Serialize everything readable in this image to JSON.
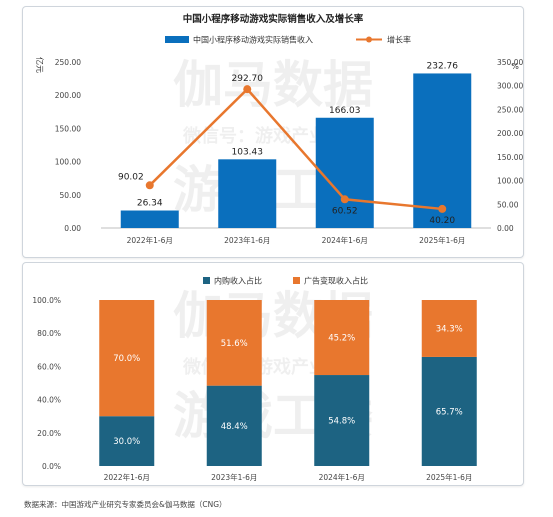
{
  "charts": {
    "revenue": {
      "title": "中国小程序移动游戏实际销售收入及增长率",
      "legend_bar": "中国小程序移动游戏实际销售收入",
      "legend_line": "增长率",
      "y_left_unit": "亿元",
      "y_right_unit": "%"
    },
    "share": {
      "legend_a": "内购收入占比",
      "legend_b": "广告变现收入占比"
    }
  },
  "watermark": {
    "line1": "伽马数据",
    "line2": "微信号：游戏产业报告",
    "line3": "游戏工委"
  },
  "source": "数据来源：中国游戏产业研究专家委员会&伽马数据（CNG）",
  "colors": {
    "bar_blue": "#0a6fbd",
    "line_orange": "#e8772e",
    "teal": "#1d6382",
    "orange": "#e8772e"
  },
  "chart_data": [
    {
      "type": "bar",
      "categories": [
        "2022年1-6月",
        "2023年1-6月",
        "2024年1-6月",
        "2025年1-6月"
      ],
      "series": [
        {
          "name": "中国小程序移动游戏实际销售收入",
          "values": [
            26.34,
            103.43,
            166.03,
            232.76
          ],
          "axis": "left"
        },
        {
          "name": "增长率",
          "type": "line",
          "values": [
            90.02,
            292.7,
            60.52,
            40.2
          ],
          "axis": "right"
        }
      ],
      "title": "中国小程序移动游戏实际销售收入及增长率",
      "ylabel": "亿元",
      "y2label": "%",
      "ylim": [
        0,
        250
      ],
      "y2lim": [
        0,
        350
      ],
      "yticks": [
        "0.00",
        "50.00",
        "100.00",
        "150.00",
        "200.00",
        "250.00"
      ],
      "y2ticks": [
        "0.00",
        "50.00",
        "100.00",
        "150.00",
        "200.00",
        "250.00",
        "300.00",
        "350.00"
      ],
      "legend": "top-center",
      "grid": false
    },
    {
      "type": "bar",
      "stacked": true,
      "categories": [
        "2022年1-6月",
        "2023年1-6月",
        "2024年1-6月",
        "2025年1-6月"
      ],
      "series": [
        {
          "name": "内购收入占比",
          "values": [
            30.0,
            48.4,
            54.8,
            65.7
          ],
          "labels": [
            "30.0%",
            "48.4%",
            "54.8%",
            "65.7%"
          ]
        },
        {
          "name": "广告变现收入占比",
          "values": [
            70.0,
            51.6,
            45.2,
            34.3
          ],
          "labels": [
            "70.0%",
            "51.6%",
            "45.2%",
            "34.3%"
          ]
        }
      ],
      "ylim": [
        0,
        100
      ],
      "yticks": [
        "0.0%",
        "20.0%",
        "40.0%",
        "60.0%",
        "80.0%",
        "100.0%"
      ],
      "legend": "top-center",
      "grid": false
    }
  ]
}
